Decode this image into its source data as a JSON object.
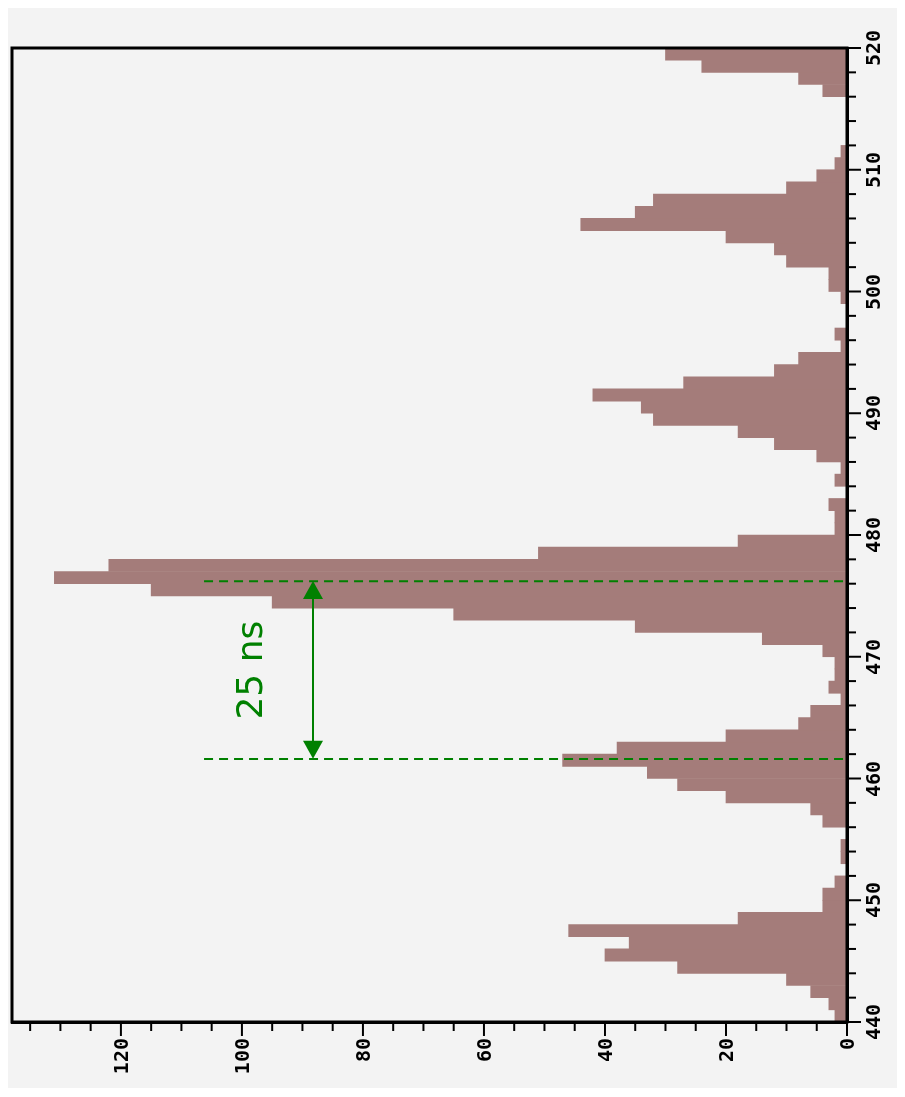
{
  "chart_data": {
    "type": "histogram",
    "orientation": "horizontal",
    "bins": [
      440,
      441,
      442,
      443,
      444,
      445,
      446,
      447,
      448,
      449,
      450,
      451,
      452,
      453,
      454,
      455,
      456,
      457,
      458,
      459,
      460,
      461,
      462,
      463,
      464,
      465,
      466,
      467,
      468,
      469,
      470,
      471,
      472,
      473,
      474,
      475,
      476,
      477,
      478,
      479,
      480,
      481,
      482,
      483,
      484,
      485,
      486,
      487,
      488,
      489,
      490,
      491,
      492,
      493,
      494,
      495,
      496,
      497,
      498,
      499,
      500,
      501,
      502,
      503,
      504,
      505,
      506,
      507,
      508,
      509,
      510,
      511,
      512,
      513,
      514,
      515,
      516,
      517,
      518,
      519,
      520
    ],
    "values": [
      2,
      3,
      6,
      10,
      28,
      40,
      36,
      46,
      18,
      4,
      4,
      2,
      0,
      1,
      1,
      0,
      4,
      6,
      20,
      28,
      33,
      47,
      38,
      20,
      8,
      6,
      1,
      3,
      2,
      2,
      4,
      14,
      35,
      65,
      95,
      115,
      131,
      122,
      51,
      18,
      2,
      2,
      3,
      0,
      2,
      1,
      5,
      12,
      18,
      32,
      34,
      42,
      27,
      12,
      8,
      1,
      2,
      0,
      0,
      1,
      3,
      3,
      10,
      12,
      20,
      44,
      35,
      32,
      10,
      5,
      2,
      1,
      0,
      0,
      0,
      0,
      4,
      8,
      24,
      30
    ],
    "color": "#a47c7a",
    "xlim": [
      138,
      0
    ],
    "xticks": [
      0,
      {
        "value": 5,
        "label": null
      },
      {
        "value": 10,
        "label": null
      },
      {
        "value": 15,
        "label": null
      },
      20,
      {
        "value": 25,
        "label": null
      },
      {
        "value": 30,
        "label": null
      },
      {
        "value": 35,
        "label": null
      },
      40,
      {
        "value": 45,
        "label": null
      },
      {
        "value": 50,
        "label": null
      },
      {
        "value": 55,
        "label": null
      },
      60,
      {
        "value": 65,
        "label": null
      },
      {
        "value": 70,
        "label": null
      },
      {
        "value": 75,
        "label": null
      },
      80,
      {
        "value": 85,
        "label": null
      },
      {
        "value": 90,
        "label": null
      },
      {
        "value": 95,
        "label": null
      },
      100,
      {
        "value": 105,
        "label": null
      },
      {
        "value": 110,
        "label": null
      },
      {
        "value": 115,
        "label": null
      },
      120,
      {
        "value": 125,
        "label": null
      },
      {
        "value": 130,
        "label": null
      },
      {
        "value": 135,
        "label": null
      }
    ],
    "ylim": [
      440,
      520
    ],
    "yticks": [
      440,
      {
        "value": 442,
        "label": null
      },
      {
        "value": 444,
        "label": null
      },
      {
        "value": 446,
        "label": null
      },
      {
        "value": 448,
        "label": null
      },
      450,
      {
        "value": 452,
        "label": null
      },
      {
        "value": 454,
        "label": null
      },
      {
        "value": 456,
        "label": null
      },
      {
        "value": 458,
        "label": null
      },
      460,
      {
        "value": 462,
        "label": null
      },
      {
        "value": 464,
        "label": null
      },
      {
        "value": 466,
        "label": null
      },
      {
        "value": 468,
        "label": null
      },
      470,
      {
        "value": 472,
        "label": null
      },
      {
        "value": 474,
        "label": null
      },
      {
        "value": 476,
        "label": null
      },
      {
        "value": 478,
        "label": null
      },
      480,
      {
        "value": 482,
        "label": null
      },
      {
        "value": 484,
        "label": null
      },
      {
        "value": 486,
        "label": null
      },
      {
        "value": 488,
        "label": null
      },
      490,
      {
        "value": 492,
        "label": null
      },
      {
        "value": 494,
        "label": null
      },
      {
        "value": 496,
        "label": null
      },
      {
        "value": 498,
        "label": null
      },
      500,
      {
        "value": 502,
        "label": null
      },
      {
        "value": 504,
        "label": null
      },
      {
        "value": 506,
        "label": null
      },
      {
        "value": 508,
        "label": null
      },
      510,
      {
        "value": 512,
        "label": null
      },
      {
        "value": 514,
        "label": null
      },
      {
        "value": 516,
        "label": null
      },
      {
        "value": 518,
        "label": null
      },
      520
    ],
    "ref_lines": [
      {
        "axis": "y",
        "value": 476.2,
        "color": "#008000",
        "line_style": "dashed"
      },
      {
        "axis": "y",
        "value": 461.6,
        "color": "#008000",
        "line_style": "dashed"
      }
    ],
    "annotations": [
      "25 ns"
    ]
  }
}
